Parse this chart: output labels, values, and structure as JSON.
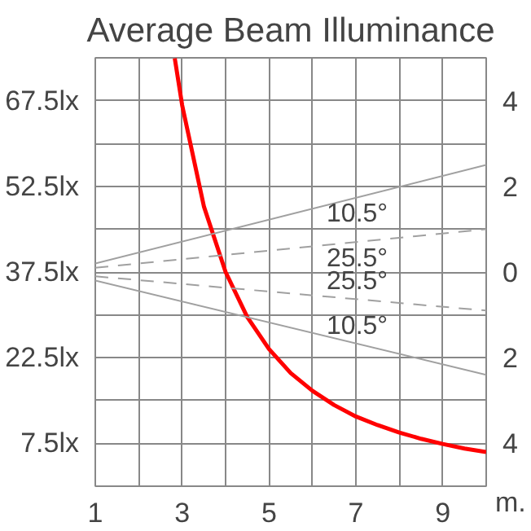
{
  "chart_data": {
    "type": "line",
    "title": "Average Beam Illuminance",
    "xlabel": "m.",
    "xlim": [
      1,
      10
    ],
    "xticks": [
      1,
      {
        "value": 2,
        "label": null
      },
      3,
      {
        "value": 4,
        "label": null
      },
      5,
      {
        "value": 6,
        "label": null
      },
      7,
      {
        "value": 8,
        "label": null
      },
      9,
      {
        "value": 10,
        "label": null
      }
    ],
    "ylim": [
      0,
      75
    ],
    "yticks": [
      {
        "value": 0,
        "label": null
      },
      {
        "value": 7.5,
        "label": "7.5lx"
      },
      {
        "value": 15,
        "label": null
      },
      {
        "value": 22.5,
        "label": "22.5lx"
      },
      {
        "value": 30,
        "label": null
      },
      {
        "value": 37.5,
        "label": "37.5lx"
      },
      {
        "value": 45,
        "label": null
      },
      {
        "value": 52.5,
        "label": "52.5lx"
      },
      {
        "value": 60,
        "label": null
      },
      {
        "value": 67.5,
        "label": "67.5lx"
      },
      {
        "value": 75,
        "label": null
      }
    ],
    "y2lim": [
      5,
      -5
    ],
    "y2ticks": [
      {
        "value": -4,
        "label": "4"
      },
      {
        "value": -2,
        "label": "2"
      },
      0,
      2,
      4
    ],
    "grid": true,
    "series": [
      {
        "color": "#ff0000",
        "x": [
          2.83,
          3,
          3.5,
          4,
          4.5,
          5,
          5.5,
          6,
          6.5,
          7,
          7.5,
          8,
          8.5,
          9,
          9.5,
          10
        ],
        "values": [
          74.9,
          66.7,
          49.0,
          37.5,
          29.6,
          24.0,
          19.8,
          16.7,
          14.2,
          12.2,
          10.7,
          9.4,
          8.3,
          7.4,
          6.6,
          6.0
        ]
      },
      {
        "name": "10.5°",
        "color": "#a0a0a0",
        "axis": "y2",
        "line_style": "solid",
        "x": [
          1,
          10
        ],
        "values": [
          -0.2,
          -2.5
        ]
      },
      {
        "name": "25.5°",
        "color": "#a0a0a0",
        "axis": "y2",
        "line_style": "dashed",
        "x": [
          1,
          10
        ],
        "values": [
          -0.1,
          -1.0
        ]
      },
      {
        "name": "25.5°",
        "color": "#a0a0a0",
        "axis": "y2",
        "line_style": "dashed",
        "x": [
          1,
          10
        ],
        "values": [
          0.1,
          0.9
        ]
      },
      {
        "name": "10.5°",
        "color": "#a0a0a0",
        "axis": "y2",
        "line_style": "solid",
        "x": [
          1,
          10
        ],
        "values": [
          0.2,
          2.4
        ]
      }
    ]
  }
}
